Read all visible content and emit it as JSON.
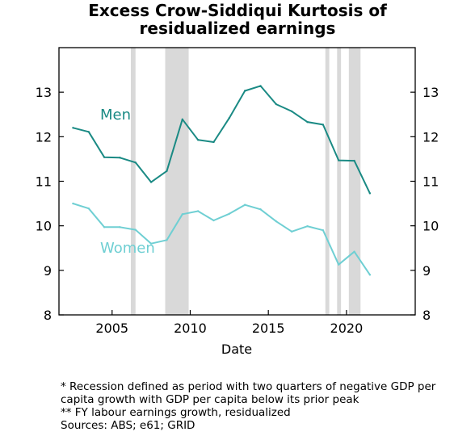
{
  "chart_data": {
    "type": "line",
    "title_lines": [
      "Excess Crow-Siddiqui Kurtosis of",
      "residualized earnings"
    ],
    "xlabel": "Date",
    "ylabel": "",
    "xlim": [
      2001.6,
      2024.4
    ],
    "ylim": [
      8,
      14
    ],
    "x_ticks": [
      2005,
      2010,
      2015,
      2020
    ],
    "y_ticks": [
      8,
      9,
      10,
      11,
      12,
      13
    ],
    "grid": false,
    "right_axis_mirrors_left": true,
    "recession_shading": [
      [
        2006.2,
        2006.5
      ],
      [
        2008.4,
        2009.9
      ],
      [
        2018.65,
        2018.9
      ],
      [
        2019.4,
        2019.65
      ],
      [
        2020.15,
        2020.9
      ]
    ],
    "recession_color": "#d9d9d9",
    "series": [
      {
        "name": "Men",
        "color": "#1a8a84",
        "x": [
          2002.5,
          2003.5,
          2004.5,
          2005.5,
          2006.5,
          2007.5,
          2008.5,
          2009.5,
          2010.5,
          2011.5,
          2012.5,
          2013.5,
          2014.5,
          2015.5,
          2016.5,
          2017.5,
          2018.5,
          2019.5,
          2020.5,
          2021.5
        ],
        "values": [
          12.2,
          12.11,
          11.54,
          11.53,
          11.42,
          10.98,
          11.23,
          12.39,
          11.93,
          11.88,
          12.42,
          13.03,
          13.14,
          12.73,
          12.57,
          12.33,
          12.27,
          11.47,
          11.46,
          10.73
        ]
      },
      {
        "name": "Women",
        "color": "#6fcfd3",
        "x": [
          2002.5,
          2003.5,
          2004.5,
          2005.5,
          2006.5,
          2007.5,
          2008.5,
          2009.5,
          2010.5,
          2011.5,
          2012.5,
          2013.5,
          2014.5,
          2015.5,
          2016.5,
          2017.5,
          2018.5,
          2019.5,
          2020.5,
          2021.5
        ],
        "values": [
          10.5,
          10.39,
          9.97,
          9.97,
          9.91,
          9.6,
          9.68,
          10.26,
          10.33,
          10.12,
          10.27,
          10.47,
          10.37,
          10.1,
          9.87,
          9.99,
          9.9,
          9.13,
          9.42,
          8.9
        ]
      }
    ],
    "footnotes": [
      "* Recession defined as period with two quarters of negative GDP per",
      "capita growth with GDP per capita below its prior peak",
      "** FY labour earnings growth, residualized",
      "Sources: ABS; e61; GRID"
    ]
  }
}
